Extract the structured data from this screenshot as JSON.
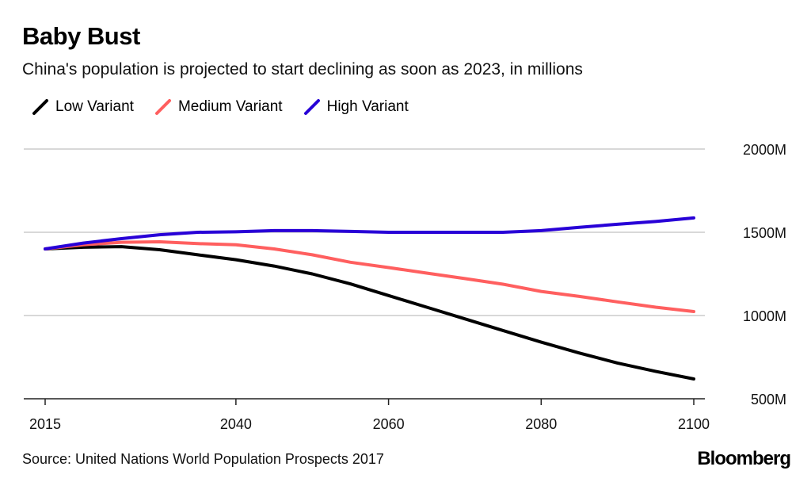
{
  "chart_data": {
    "type": "line",
    "title": "Baby Bust",
    "subtitle": "China's population is projected to start declining as soon as 2023, in millions",
    "x": [
      2015,
      2020,
      2025,
      2030,
      2035,
      2040,
      2045,
      2050,
      2055,
      2060,
      2065,
      2070,
      2075,
      2080,
      2085,
      2090,
      2095,
      2100
    ],
    "series": [
      {
        "name": "Low Variant",
        "color": "#000000",
        "values": [
          1400,
          1410,
          1414,
          1395,
          1365,
          1335,
          1297,
          1250,
          1190,
          1120,
          1050,
          980,
          910,
          840,
          775,
          715,
          665,
          619
        ]
      },
      {
        "name": "Medium Variant",
        "color": "#ff5f5f",
        "values": [
          1400,
          1425,
          1440,
          1443,
          1432,
          1425,
          1400,
          1365,
          1320,
          1288,
          1255,
          1222,
          1188,
          1145,
          1115,
          1082,
          1050,
          1024
        ]
      },
      {
        "name": "High Variant",
        "color": "#2800d7",
        "values": [
          1400,
          1435,
          1462,
          1485,
          1500,
          1503,
          1510,
          1510,
          1505,
          1500,
          1500,
          1500,
          1500,
          1510,
          1530,
          1548,
          1565,
          1586
        ]
      }
    ],
    "xticks": [
      2015,
      2040,
      2060,
      2080,
      2100
    ],
    "xtick_labels": [
      "2015",
      "2040",
      "2060",
      "2080",
      "2100"
    ],
    "yticks": [
      500,
      1000,
      1500,
      2000
    ],
    "ytick_labels": [
      "500M",
      "1000M",
      "1500M",
      "2000M"
    ],
    "xlim": [
      2015,
      2100
    ],
    "ylim": [
      500,
      2000
    ],
    "grid": true,
    "legend_position": "top-left",
    "xlabel": "",
    "ylabel": ""
  },
  "source": "Source: United Nations World Population Prospects 2017",
  "logo": "Bloomberg"
}
